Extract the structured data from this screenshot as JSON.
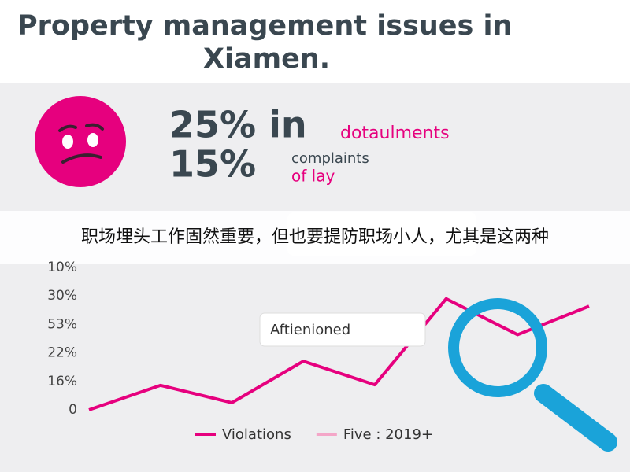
{
  "title_lines": [
    "Property management issues in",
    "Xiamen."
  ],
  "stats": [
    {
      "big": "25% in",
      "small": [
        "dotaulments"
      ]
    },
    {
      "big": "15%",
      "small": [
        "complaints",
        "of lay"
      ]
    }
  ],
  "banner": "职场埋头工作固然重要，但也要提防职场小人，尤其是这两种",
  "annotation": "Aftienioned",
  "chart_data": {
    "type": "line",
    "ylim": [
      0,
      5
    ],
    "yticks": [
      {
        "value": 0,
        "label": "0"
      },
      {
        "value": 1,
        "label": "16%"
      },
      {
        "value": 2,
        "label": "22%"
      },
      {
        "value": 3,
        "label": "53%"
      },
      {
        "value": 4,
        "label": "30%"
      },
      {
        "value": 5,
        "label": "10%"
      }
    ],
    "series": [
      {
        "name": "Violations",
        "color": "#e6007e",
        "values": [
          0,
          0.86,
          0.25,
          1.71,
          0.88,
          3.9,
          2.64,
          3.64
        ]
      },
      {
        "name": "Five : 2019+",
        "color": "#f4a6c8",
        "values": []
      }
    ]
  }
}
